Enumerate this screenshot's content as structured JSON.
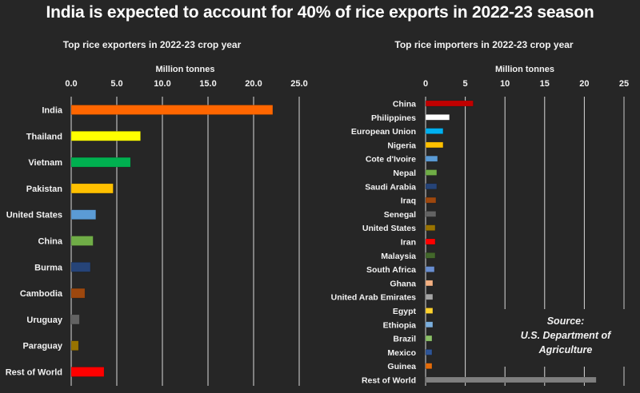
{
  "title": "India is expected to account for 40% of rice exports in 2022-23 season",
  "source": {
    "line1": "Source:",
    "line2": "U.S. Department of",
    "line3": "Agriculture"
  },
  "chart_data": [
    {
      "type": "bar",
      "orientation": "horizontal",
      "title": "Top rice exporters in 2022-23 crop year",
      "xlabel": "Million tonnes",
      "ylabel": "",
      "xlim": [
        0,
        25
      ],
      "xticks": [
        "0.0",
        "5.0",
        "10.0",
        "15.0",
        "20.0",
        "25.0"
      ],
      "tick_values": [
        0,
        5,
        10,
        15,
        20,
        25
      ],
      "axis_position": "top",
      "grid": true,
      "categories": [
        "India",
        "Thailand",
        "Vietnam",
        "Pakistan",
        "United States",
        "China",
        "Burma",
        "Cambodia",
        "Uruguay",
        "Paraguay",
        "Rest of World"
      ],
      "values": [
        22.1,
        7.6,
        6.5,
        4.6,
        2.7,
        2.4,
        2.1,
        1.5,
        0.9,
        0.8,
        3.6
      ],
      "colors": [
        "#ff6600",
        "#ffff00",
        "#00b050",
        "#ffc000",
        "#5b9bd5",
        "#70ad47",
        "#264478",
        "#9e480e",
        "#636363",
        "#997300",
        "#ff0000"
      ]
    },
    {
      "type": "bar",
      "orientation": "horizontal",
      "title": "Top rice importers in 2022-23 crop year",
      "xlabel": "Million tonnes",
      "ylabel": "",
      "xlim": [
        0,
        25
      ],
      "xticks": [
        "0",
        "5",
        "10",
        "15",
        "20",
        "25"
      ],
      "tick_values": [
        0,
        5,
        10,
        15,
        20,
        25
      ],
      "axis_position": "top",
      "grid": true,
      "categories": [
        "China",
        "Philippines",
        "European Union",
        "Nigeria",
        "Cote d'Ivoire",
        "Nepal",
        "Saudi Arabia",
        "Iraq",
        "Senegal",
        "United States",
        "Iran",
        "Malaysia",
        "South Africa",
        "Ghana",
        "United Arab Emirates",
        "Egypt",
        "Ethiopia",
        "Brazil",
        "Mexico",
        "Guinea",
        "Rest of World"
      ],
      "values": [
        6.0,
        3.0,
        2.2,
        2.2,
        1.5,
        1.4,
        1.4,
        1.3,
        1.3,
        1.2,
        1.2,
        1.2,
        1.1,
        0.9,
        0.9,
        0.9,
        0.9,
        0.8,
        0.8,
        0.8,
        21.5
      ],
      "colors": [
        "#c00000",
        "#ffffff",
        "#00b0f0",
        "#ffc000",
        "#5b9bd5",
        "#70ad47",
        "#264478",
        "#9e480e",
        "#636363",
        "#997300",
        "#ff0000",
        "#43682b",
        "#698ed0",
        "#f4b183",
        "#a5a5a5",
        "#ffd22e",
        "#7cafdd",
        "#8cc168",
        "#2e5597",
        "#e46c0a",
        "#7f7f7f"
      ]
    }
  ]
}
